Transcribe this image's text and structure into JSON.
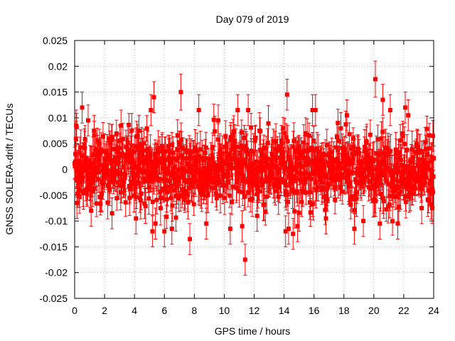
{
  "chart_data": {
    "type": "scatter",
    "title": "Day 079 of 2019",
    "xlabel": "GPS time / hours",
    "ylabel": "GNSS SOLERA-drift / TECUs",
    "xlim": [
      0,
      24
    ],
    "ylim": [
      -0.025,
      0.025
    ],
    "xticks": [
      0,
      2,
      4,
      6,
      8,
      10,
      12,
      14,
      16,
      18,
      20,
      22,
      24
    ],
    "xtick_labels": [
      "0",
      "2",
      "4",
      "6",
      "8",
      "10",
      "12",
      "14",
      "16",
      "18",
      "20",
      "22",
      "24"
    ],
    "yticks": [
      -0.025,
      -0.02,
      -0.015,
      -0.01,
      -0.005,
      0,
      0.005,
      0.01,
      0.015,
      0.02,
      0.025
    ],
    "ytick_labels": [
      "-0.025",
      "-0.02",
      "-0.015",
      "-0.01",
      "-0.005",
      "0",
      "0.005",
      "0.01",
      "0.015",
      "0.02",
      "0.025"
    ],
    "grid": true,
    "marker_color": "#ff0000",
    "marker": "square",
    "error_bars": true,
    "dense_band": {
      "x_range": [
        0,
        24
      ],
      "typical_range": [
        -0.006,
        0.006
      ],
      "error_bar": 0.003
    },
    "points": [
      {
        "x": 0.05,
        "y": 0.003,
        "err": 0.003
      },
      {
        "x": 0.1,
        "y": 0.0085,
        "err": 0.003
      },
      {
        "x": 0.15,
        "y": -0.0065,
        "err": 0.003
      },
      {
        "x": 0.5,
        "y": 0.012,
        "err": 0.003
      },
      {
        "x": 0.9,
        "y": 0.0095,
        "err": 0.003
      },
      {
        "x": 1.1,
        "y": -0.008,
        "err": 0.003
      },
      {
        "x": 1.3,
        "y": 0.0075,
        "err": 0.003
      },
      {
        "x": 2.5,
        "y": -0.0085,
        "err": 0.003
      },
      {
        "x": 3.1,
        "y": 0.0085,
        "err": 0.003
      },
      {
        "x": 4.1,
        "y": -0.0095,
        "err": 0.003
      },
      {
        "x": 4.3,
        "y": 0.0075,
        "err": 0.003
      },
      {
        "x": 5.1,
        "y": 0.0115,
        "err": 0.003
      },
      {
        "x": 5.2,
        "y": -0.012,
        "err": 0.003
      },
      {
        "x": 5.3,
        "y": 0.014,
        "err": 0.003
      },
      {
        "x": 5.4,
        "y": -0.0105,
        "err": 0.003
      },
      {
        "x": 6.0,
        "y": -0.012,
        "err": 0.003
      },
      {
        "x": 6.5,
        "y": -0.0115,
        "err": 0.003
      },
      {
        "x": 7.1,
        "y": 0.015,
        "err": 0.0035
      },
      {
        "x": 7.7,
        "y": -0.0135,
        "err": 0.003
      },
      {
        "x": 8.3,
        "y": 0.0115,
        "err": 0.003
      },
      {
        "x": 8.8,
        "y": -0.0105,
        "err": 0.003
      },
      {
        "x": 9.6,
        "y": 0.0095,
        "err": 0.003
      },
      {
        "x": 10.4,
        "y": -0.0115,
        "err": 0.003
      },
      {
        "x": 10.9,
        "y": 0.0115,
        "err": 0.003
      },
      {
        "x": 11.2,
        "y": -0.011,
        "err": 0.003
      },
      {
        "x": 11.4,
        "y": -0.0175,
        "err": 0.003
      },
      {
        "x": 11.6,
        "y": 0.0115,
        "err": 0.003
      },
      {
        "x": 12.2,
        "y": -0.009,
        "err": 0.003
      },
      {
        "x": 14.1,
        "y": -0.012,
        "err": 0.003
      },
      {
        "x": 14.2,
        "y": 0.0145,
        "err": 0.003
      },
      {
        "x": 14.3,
        "y": -0.0115,
        "err": 0.003
      },
      {
        "x": 14.6,
        "y": -0.0125,
        "err": 0.003
      },
      {
        "x": 14.9,
        "y": -0.011,
        "err": 0.003
      },
      {
        "x": 15.9,
        "y": 0.0115,
        "err": 0.003
      },
      {
        "x": 16.1,
        "y": 0.0115,
        "err": 0.003
      },
      {
        "x": 16.8,
        "y": -0.0095,
        "err": 0.003
      },
      {
        "x": 18.2,
        "y": 0.0105,
        "err": 0.003
      },
      {
        "x": 18.7,
        "y": -0.0115,
        "err": 0.003
      },
      {
        "x": 19.3,
        "y": -0.01,
        "err": 0.003
      },
      {
        "x": 20.1,
        "y": 0.0175,
        "err": 0.0035
      },
      {
        "x": 20.4,
        "y": -0.0105,
        "err": 0.003
      },
      {
        "x": 20.6,
        "y": 0.0135,
        "err": 0.003
      },
      {
        "x": 21.1,
        "y": 0.0115,
        "err": 0.003
      },
      {
        "x": 21.6,
        "y": -0.0105,
        "err": 0.003
      },
      {
        "x": 22.1,
        "y": 0.012,
        "err": 0.003
      },
      {
        "x": 22.3,
        "y": 0.0105,
        "err": 0.003
      },
      {
        "x": 23.2,
        "y": -0.0075,
        "err": 0.003
      },
      {
        "x": 23.9,
        "y": -0.0075,
        "err": 0.003
      },
      {
        "x": 23.95,
        "y": 0.0065,
        "err": 0.003
      }
    ]
  }
}
